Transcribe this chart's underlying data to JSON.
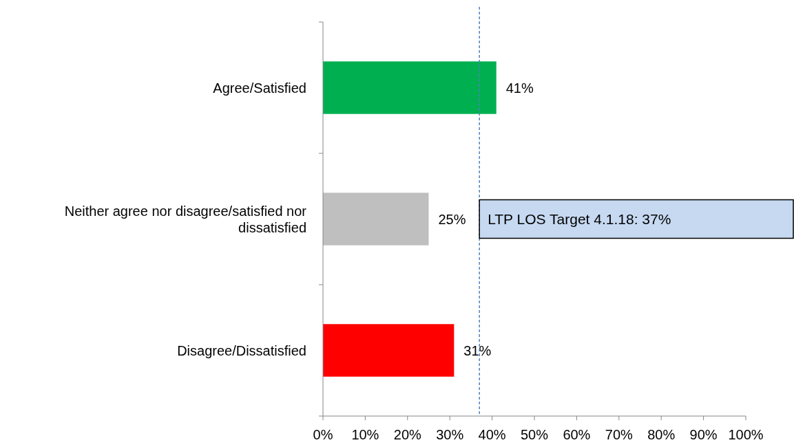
{
  "chart_data": {
    "type": "bar",
    "orientation": "horizontal",
    "categories": [
      "Agree/Satisfied",
      "Neither agree nor disagree/satisfied nor dissatisfied",
      "Disagree/Dissatisfied"
    ],
    "values": [
      41,
      25,
      31
    ],
    "colors": [
      "#00b050",
      "#bfbfbf",
      "#ff0000"
    ],
    "value_labels": [
      "41%",
      "25%",
      "31%"
    ],
    "xlim": [
      0,
      100
    ],
    "xticks": [
      {
        "value": 0,
        "label": "0%"
      },
      {
        "value": 10,
        "label": "10%"
      },
      {
        "value": 20,
        "label": "20%"
      },
      {
        "value": 30,
        "label": "30%"
      },
      {
        "value": 40,
        "label": "40%"
      },
      {
        "value": 50,
        "label": "50%"
      },
      {
        "value": 60,
        "label": "60%"
      },
      {
        "value": 70,
        "label": "70%"
      },
      {
        "value": 80,
        "label": "80%"
      },
      {
        "value": 90,
        "label": "90%"
      },
      {
        "value": 100,
        "label": "100%"
      }
    ],
    "ref_lines": [
      {
        "axis": "x",
        "value": 37,
        "label": "LTP LOS Target 4.1.18: 37%",
        "color": "#4f81bd",
        "line_style": "dashed"
      }
    ],
    "grid": false
  }
}
